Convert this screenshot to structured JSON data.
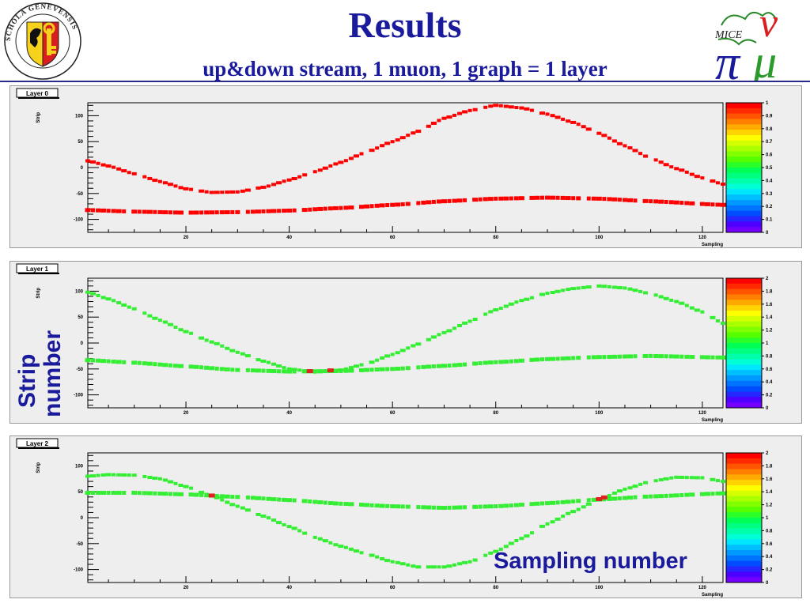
{
  "title": "Results",
  "subtitle": "up&down stream, 1 muon, 1 graph = 1 layer",
  "logos": {
    "left": {
      "description": "Schola Genevensis seal",
      "text": "SCHOLA GENEVENSIS"
    },
    "right": {
      "description": "MICE logo",
      "text": "MICE"
    }
  },
  "captions": {
    "y_axis": "Strip number",
    "x_axis": "Sampling number"
  },
  "colors": {
    "title": "#1a1a9c",
    "layer0_points": "#ff0000",
    "layer1_points": "#33ee33",
    "layer2_points": "#33ee33",
    "crossing_points": "#dd2222",
    "frame_background": "#eeeeee"
  },
  "chart_data": [
    {
      "type": "scatter",
      "title": "Layer 0",
      "xlabel": "Sampling",
      "ylabel": "Strip",
      "xlim": [
        1,
        124
      ],
      "ylim": [
        -125,
        125
      ],
      "x_ticks": [
        20,
        40,
        60,
        80,
        100,
        120
      ],
      "y_ticks": [
        100,
        50,
        0,
        -50,
        -100
      ],
      "grid": false,
      "palette_ticks": [
        "1",
        "0.9",
        "0.8",
        "0.7",
        "0.6",
        "0.5",
        "0.4",
        "0.3",
        "0.2",
        "0.1",
        "0"
      ],
      "series": [
        {
          "color": "#ff0000",
          "x": [
            1,
            5,
            10,
            15,
            20,
            25,
            30,
            35,
            40,
            45,
            50,
            55,
            60,
            65,
            70,
            75,
            80,
            85,
            90,
            95,
            100,
            105,
            110,
            115,
            120,
            124
          ],
          "y": [
            13,
            3,
            -12,
            -27,
            -41,
            -48,
            -47,
            -38,
            -24,
            -8,
            10,
            30,
            50,
            70,
            95,
            110,
            120,
            115,
            103,
            87,
            66,
            42,
            18,
            -2,
            -20,
            -32
          ]
        },
        {
          "color": "#ff0000",
          "x": [
            1,
            10,
            20,
            30,
            40,
            50,
            60,
            70,
            80,
            90,
            100,
            110,
            124
          ],
          "y": [
            -82,
            -85,
            -87,
            -86,
            -83,
            -78,
            -72,
            -65,
            -60,
            -58,
            -60,
            -65,
            -72
          ]
        }
      ]
    },
    {
      "type": "scatter",
      "title": "Layer 1",
      "xlabel": "Sampling",
      "ylabel": "Strip",
      "xlim": [
        1,
        124
      ],
      "ylim": [
        -125,
        125
      ],
      "x_ticks": [
        20,
        40,
        60,
        80,
        100,
        120
      ],
      "y_ticks": [
        100,
        50,
        0,
        -50,
        -100
      ],
      "grid": false,
      "palette_ticks": [
        "2",
        "1.8",
        "1.6",
        "1.4",
        "1.2",
        "1",
        "0.8",
        "0.6",
        "0.4",
        "0.2",
        "0"
      ],
      "series": [
        {
          "color": "#33ee33",
          "x": [
            1,
            5,
            10,
            15,
            20,
            25,
            30,
            35,
            40,
            45,
            50,
            55,
            60,
            65,
            70,
            75,
            80,
            85,
            90,
            95,
            100,
            105,
            110,
            115,
            120,
            124
          ],
          "y": [
            98,
            85,
            66,
            44,
            22,
            2,
            -18,
            -35,
            -50,
            -56,
            -52,
            -40,
            -22,
            -2,
            20,
            42,
            64,
            82,
            96,
            105,
            110,
            106,
            95,
            80,
            60,
            38
          ]
        },
        {
          "color": "#33ee33",
          "x": [
            1,
            10,
            20,
            30,
            40,
            50,
            60,
            70,
            80,
            90,
            100,
            110,
            124
          ],
          "y": [
            -33,
            -38,
            -45,
            -52,
            -55,
            -54,
            -50,
            -44,
            -37,
            -31,
            -27,
            -25,
            -28
          ]
        }
      ]
    },
    {
      "type": "scatter",
      "title": "Layer 2",
      "xlabel": "Sampling",
      "ylabel": "Strip",
      "xlim": [
        1,
        124
      ],
      "ylim": [
        -125,
        125
      ],
      "x_ticks": [
        20,
        40,
        60,
        80,
        100,
        120
      ],
      "y_ticks": [
        100,
        50,
        0,
        -50,
        -100
      ],
      "grid": false,
      "palette_ticks": [
        "2",
        "1.8",
        "1.6",
        "1.4",
        "1.2",
        "1",
        "0.8",
        "0.6",
        "0.4",
        "0.2",
        "0"
      ],
      "series": [
        {
          "color": "#33ee33",
          "x": [
            1,
            5,
            10,
            15,
            20,
            25,
            30,
            35,
            40,
            45,
            50,
            55,
            60,
            65,
            70,
            75,
            80,
            85,
            90,
            95,
            100,
            105,
            110,
            115,
            120,
            124
          ],
          "y": [
            80,
            83,
            82,
            75,
            60,
            42,
            22,
            3,
            -17,
            -38,
            -55,
            -70,
            -85,
            -95,
            -95,
            -85,
            -65,
            -40,
            -12,
            12,
            35,
            55,
            70,
            78,
            77,
            70
          ]
        },
        {
          "color": "#33ee33",
          "x": [
            1,
            10,
            20,
            30,
            40,
            50,
            60,
            70,
            80,
            90,
            100,
            110,
            124
          ],
          "y": [
            48,
            48,
            45,
            40,
            34,
            27,
            22,
            19,
            22,
            28,
            35,
            41,
            47
          ]
        }
      ]
    }
  ]
}
